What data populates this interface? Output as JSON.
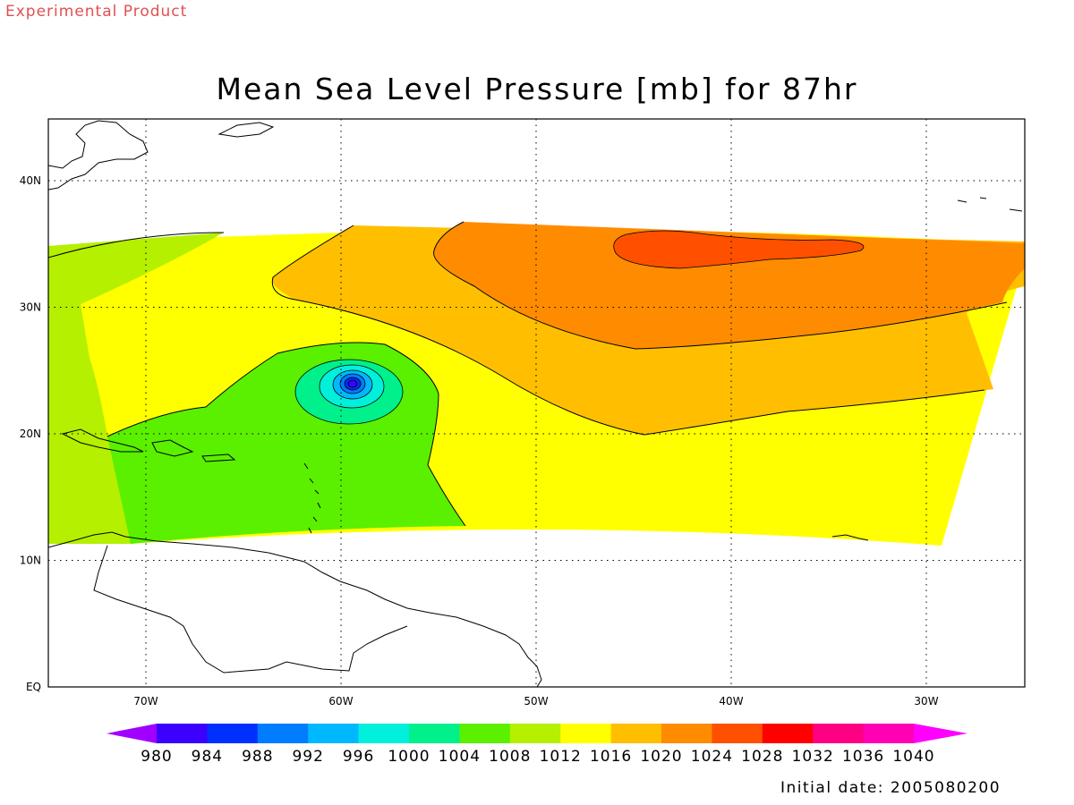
{
  "header": {
    "experimental_label": "Experimental Product",
    "title": "Mean Sea Level Pressure [mb] for 87hr"
  },
  "footer": {
    "initial_date": "Initial date: 2005080200"
  },
  "map": {
    "lon_ticks": [
      {
        "value": -70,
        "label": "70W"
      },
      {
        "value": -60,
        "label": "60W"
      },
      {
        "value": -50,
        "label": "50W"
      },
      {
        "value": -40,
        "label": "40W"
      },
      {
        "value": -30,
        "label": "30W"
      }
    ],
    "lat_ticks": [
      {
        "value": 0,
        "label": "EQ"
      },
      {
        "value": 10,
        "label": "10N"
      },
      {
        "value": 20,
        "label": "20N"
      },
      {
        "value": 30,
        "label": "30N"
      },
      {
        "value": 40,
        "label": "40N"
      }
    ],
    "grid": "dotted",
    "low_center": {
      "lon": -59.5,
      "lat": 24
    },
    "high_center": {
      "lon": -40,
      "lat": 35
    }
  },
  "colorbar": {
    "labels": [
      "980",
      "984",
      "988",
      "992",
      "996",
      "1000",
      "1004",
      "1008",
      "1012",
      "1016",
      "1020",
      "1024",
      "1028",
      "1032",
      "1036",
      "1040"
    ],
    "colors": [
      "#a000ff",
      "#3c00ff",
      "#0030ff",
      "#007cff",
      "#00b8ff",
      "#00f0dc",
      "#00f08c",
      "#5af000",
      "#b4f000",
      "#ffff00",
      "#ffbf00",
      "#ff8c00",
      "#ff5000",
      "#ff0000",
      "#ff0082",
      "#ff00b4",
      "#ff00ff"
    ]
  }
}
